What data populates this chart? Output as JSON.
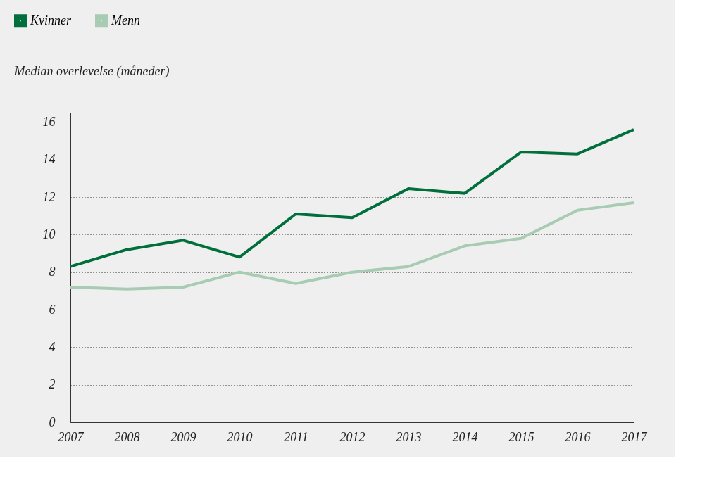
{
  "chart_data": {
    "type": "line",
    "ylabel": "Median overlevelse (måneder)",
    "categories": [
      "2007",
      "2008",
      "2009",
      "2010",
      "2011",
      "2012",
      "2013",
      "2014",
      "2015",
      "2016",
      "2017"
    ],
    "series": [
      {
        "name": "Kvinner",
        "color": "#006f3c",
        "values": [
          8.3,
          9.2,
          9.7,
          8.8,
          11.1,
          10.9,
          12.45,
          12.2,
          14.4,
          14.3,
          15.6
        ]
      },
      {
        "name": "Menn",
        "color": "#a8cbb4",
        "values": [
          7.2,
          7.1,
          7.2,
          8.0,
          7.4,
          8.0,
          8.3,
          9.4,
          9.8,
          11.3,
          11.7
        ]
      }
    ],
    "ylim": [
      0,
      16.5
    ],
    "yticks": [
      0,
      2,
      4,
      6,
      8,
      10,
      12,
      14,
      16
    ],
    "grid": "y",
    "legend": "top left",
    "marker": "none",
    "line_style": "solid"
  }
}
